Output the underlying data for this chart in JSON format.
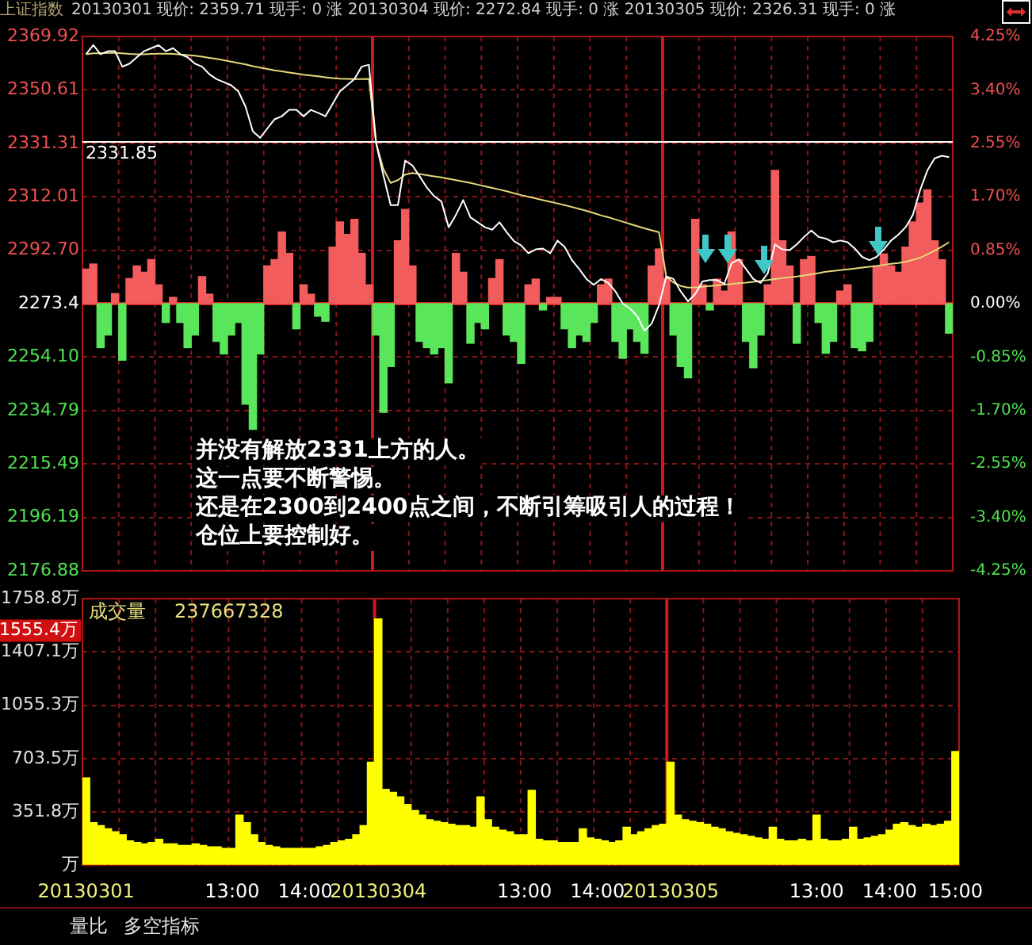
{
  "chart_data": [
    {
      "type": "line",
      "title": "上证指数",
      "subtitle": "20130301 现价: 2359.71 现手: 0 涨 20130304 现价: 2272.84 现手: 0 涨 20130305 现价: 2326.31 现手: 0 涨",
      "categories": [
        null,
        null,
        null,
        null,
        null,
        null,
        null,
        null,
        null,
        null,
        null,
        null,
        null,
        null,
        null,
        null,
        null,
        null,
        null,
        null,
        null,
        null,
        null,
        null,
        null,
        null,
        null,
        null,
        null,
        null,
        null,
        null,
        null,
        null,
        null,
        null,
        null,
        null,
        null,
        null,
        null,
        null,
        null,
        null,
        null,
        null,
        null,
        null,
        null,
        null,
        null,
        null,
        null,
        null,
        null,
        null,
        null,
        null,
        null,
        null,
        null,
        null,
        null,
        null,
        null,
        null,
        null,
        null,
        null,
        null,
        null,
        null,
        null,
        null,
        null,
        null,
        null,
        null,
        null,
        null,
        null,
        null,
        null,
        null,
        null,
        null,
        null,
        null,
        null,
        null,
        null,
        null,
        null,
        null,
        null,
        null,
        null,
        null,
        null,
        null,
        null,
        null,
        null,
        null,
        null,
        null,
        null,
        null,
        null,
        null,
        null,
        null,
        null,
        null,
        null,
        null,
        null,
        null,
        null,
        null
      ],
      "series": [
        {
          "type": "bar",
          "axis": "y2",
          "color": "#f25c5c",
          "values": [
            0.55,
            0.63,
            null,
            null,
            0.16,
            null,
            0.4,
            0.6,
            0.5,
            0.7,
            0.3,
            null,
            0.1,
            null,
            null,
            null,
            0.43,
            0.15,
            null,
            null,
            null,
            null,
            null,
            null,
            null,
            0.6,
            0.7,
            1.14,
            0.8,
            null,
            0.3,
            0.15,
            null,
            null,
            0.9,
            1.3,
            1.1,
            1.34,
            0.8,
            0.3,
            null,
            null,
            null,
            1.0,
            1.5,
            0.6,
            null,
            null,
            null,
            null,
            null,
            0.8,
            0.5,
            null,
            null,
            null,
            0.4,
            0.7,
            null,
            null,
            null,
            0.3,
            0.39,
            null,
            0.1,
            0.1,
            null,
            null,
            null,
            null,
            null,
            0.3,
            0.39,
            null,
            null,
            null,
            null,
            null,
            0.6,
            0.87,
            0.4,
            null,
            null,
            null,
            1.34,
            0.3,
            null,
            0.39,
            0.2,
            1.14,
            0.7,
            null,
            null,
            null,
            0.3,
            2.12,
            1.0,
            0.6,
            null,
            0.7,
            0.75,
            null,
            null,
            null,
            0.2,
            0.3,
            null,
            null,
            null,
            0.6,
            0.79,
            0.6,
            0.5,
            0.9,
            1.3,
            1.6,
            1.81,
            1.0,
            0.7,
            null
          ]
        },
        {
          "type": "bar",
          "axis": "y2",
          "color": "#5ae65a",
          "values": [
            null,
            null,
            -0.7,
            -0.5,
            null,
            -0.9,
            null,
            null,
            null,
            null,
            null,
            -0.3,
            null,
            -0.3,
            -0.7,
            -0.5,
            null,
            null,
            -0.6,
            -0.8,
            -0.5,
            -0.3,
            -1.6,
            -2.0,
            -0.8,
            null,
            null,
            null,
            null,
            -0.4,
            null,
            null,
            -0.2,
            -0.28,
            null,
            null,
            null,
            null,
            null,
            null,
            -0.5,
            -1.73,
            -1.0,
            null,
            null,
            null,
            -0.6,
            -0.7,
            -0.8,
            -0.7,
            -1.26,
            null,
            null,
            -0.63,
            -0.3,
            -0.4,
            null,
            null,
            -0.5,
            -0.6,
            -0.95,
            null,
            null,
            -0.1,
            null,
            null,
            -0.4,
            -0.7,
            -0.5,
            -0.6,
            -0.3,
            null,
            null,
            -0.6,
            -0.87,
            -0.4,
            -0.6,
            -0.79,
            null,
            null,
            null,
            -0.5,
            -1.0,
            -1.18,
            null,
            null,
            -0.1,
            null,
            null,
            null,
            null,
            -0.6,
            -1.02,
            -0.5,
            null,
            null,
            null,
            null,
            -0.63,
            null,
            null,
            -0.3,
            -0.79,
            -0.6,
            null,
            null,
            -0.7,
            -0.75,
            -0.6,
            null,
            null,
            null,
            null,
            null,
            null,
            null,
            null,
            null,
            null,
            -0.47
          ]
        },
        {
          "type": "line",
          "color": "#ffffff",
          "values": [
            2363.5,
            2366.8,
            2363.5,
            2364.6,
            2364.6,
            2359.0,
            2360.1,
            2362.4,
            2364.6,
            2365.7,
            2366.8,
            2364.6,
            2365.7,
            2363.5,
            2362.4,
            2360.1,
            2359.0,
            2356.3,
            2354.5,
            2353.4,
            2352.3,
            2350.1,
            2344.5,
            2335.6,
            2333.3,
            2336.7,
            2340.0,
            2341.1,
            2343.4,
            2343.4,
            2341.1,
            2343.4,
            2342.3,
            2341.1,
            2345.6,
            2350.1,
            2352.3,
            2354.5,
            2359.0,
            2359.71,
            2331.3,
            2319.7,
            2309.0,
            2309.0,
            2325.1,
            2323.3,
            2319.4,
            2315.3,
            2312.2,
            2310.3,
            2301.0,
            2305.5,
            2310.8,
            2304.6,
            2302.8,
            2301.0,
            2300.1,
            2302.8,
            2299.2,
            2296.0,
            2294.4,
            2291.6,
            2293.0,
            2293.3,
            2291.6,
            2296.2,
            2293.9,
            2289.1,
            2285.9,
            2282.3,
            2280.2,
            2282.3,
            2280.9,
            2277.8,
            2273.4,
            2271.6,
            2268.9,
            2263.6,
            2266.2,
            2272.84,
            2283.2,
            2282.3,
            2277.8,
            2274.2,
            2276.9,
            2281.4,
            2281.9,
            2281.9,
            2280.5,
            2288.0,
            2289.4,
            2285.9,
            2282.3,
            2280.9,
            2284.4,
            2294.8,
            2293.0,
            2292.7,
            2294.8,
            2297.5,
            2299.8,
            2297.5,
            2296.9,
            2295.6,
            2296.2,
            2295.6,
            2293.3,
            2290.3,
            2289.1,
            2290.3,
            2293.0,
            2296.2,
            2298.3,
            2301.0,
            2305.5,
            2314.4,
            2321.5,
            2325.9,
            2326.8,
            2326.31
          ]
        },
        {
          "type": "line",
          "color": "#e6d77a",
          "values": [
            2363.5,
            2363.8,
            2363.8,
            2364.0,
            2364.0,
            2363.8,
            2363.6,
            2363.5,
            2363.5,
            2363.6,
            2363.7,
            2363.7,
            2363.6,
            2363.4,
            2363.2,
            2363.0,
            2362.6,
            2362.2,
            2361.8,
            2361.3,
            2360.8,
            2360.3,
            2359.8,
            2359.2,
            2358.7,
            2358.2,
            2357.7,
            2357.3,
            2356.9,
            2356.5,
            2356.1,
            2355.8,
            2355.5,
            2355.2,
            2354.9,
            2354.7,
            2354.6,
            2354.5,
            2354.5,
            2354.6,
            2331.3,
            2322.0,
            2317.0,
            2318.0,
            2320.0,
            2320.6,
            2320.2,
            2319.8,
            2319.4,
            2319.0,
            2318.5,
            2318.0,
            2317.5,
            2317.0,
            2316.4,
            2315.8,
            2315.2,
            2314.6,
            2314.0,
            2313.3,
            2312.6,
            2312.0,
            2311.4,
            2310.8,
            2310.2,
            2309.6,
            2309.0,
            2308.3,
            2307.6,
            2306.9,
            2306.1,
            2305.3,
            2304.6,
            2303.8,
            2303.0,
            2302.2,
            2301.4,
            2300.6,
            2299.9,
            2299.2,
            2283.2,
            2281.0,
            2279.8,
            2279.2,
            2279.3,
            2279.5,
            2279.8,
            2280.0,
            2280.3,
            2280.5,
            2280.8,
            2281.0,
            2281.3,
            2281.6,
            2281.9,
            2282.3,
            2282.6,
            2282.9,
            2283.2,
            2283.6,
            2284.0,
            2284.4,
            2284.9,
            2285.2,
            2285.5,
            2285.8,
            2286.1,
            2286.4,
            2286.7,
            2287.0,
            2287.4,
            2287.8,
            2288.1,
            2288.5,
            2289.2,
            2290.0,
            2291.2,
            2292.5,
            2294.0,
            2295.6
          ]
        }
      ],
      "stacked": true,
      "ylim": [
        2176.88,
        2369.92
      ],
      "yticks": [
        2176.88,
        2196.19,
        2215.49,
        2234.79,
        {
          "value": 2254.1,
          "label": "2254.10"
        },
        2273.4,
        {
          "value": 2292.7,
          "label": "2292.70"
        },
        2312.01,
        2331.31,
        2350.61,
        2369.92
      ],
      "y2lim": [
        -4.25,
        4.25
      ],
      "y2ticks": [
        {
          "value": -4.25,
          "label": "-4.25%"
        },
        {
          "value": -3.4,
          "label": "-3.40%"
        },
        {
          "value": -2.55,
          "label": "-2.55%"
        },
        {
          "value": -1.7,
          "label": "-1.70%"
        },
        {
          "value": -0.85,
          "label": "-0.85%"
        },
        {
          "value": 0,
          "label": "0.00%"
        },
        {
          "value": 0.85,
          "label": "0.85%"
        },
        {
          "value": 1.7,
          "label": "1.70%"
        },
        {
          "value": 2.55,
          "label": "2.55%"
        },
        {
          "value": 3.4,
          "label": "3.40%"
        },
        {
          "value": 4.25,
          "label": "4.25%"
        }
      ],
      "ref_lines": [
        {
          "axis": "y",
          "value": 2331.85,
          "label": "2331.85",
          "color": "#ffffff"
        },
        {
          "axis": "y2",
          "value": 0,
          "color": "#e02020"
        }
      ],
      "annotations": [
        "并没有解放2331上方的人。",
        "这一点要不断警惕。",
        "还是在2300到2400点之间，不断引筹吸引人的过程！",
        "仓位上要控制好。"
      ],
      "grid": true,
      "marker": "none",
      "line_style": "solid",
      "tick_labels": "y"
    },
    {
      "type": "bar",
      "title": "成交量",
      "categories": [
        "20130301",
        null,
        null,
        null,
        null,
        null,
        null,
        null,
        null,
        null,
        null,
        null,
        null,
        null,
        null,
        null,
        null,
        null,
        null,
        null,
        "13:00",
        null,
        null,
        null,
        null,
        null,
        null,
        null,
        null,
        null,
        "14:00",
        null,
        null,
        null,
        null,
        null,
        null,
        null,
        null,
        null,
        "20130304",
        null,
        null,
        null,
        null,
        null,
        null,
        null,
        null,
        null,
        null,
        null,
        null,
        null,
        null,
        null,
        null,
        null,
        null,
        null,
        "13:00",
        null,
        null,
        null,
        null,
        null,
        null,
        null,
        null,
        null,
        "14:00",
        null,
        null,
        null,
        null,
        null,
        null,
        null,
        null,
        null,
        "20130305",
        null,
        null,
        null,
        null,
        null,
        null,
        null,
        null,
        null,
        null,
        null,
        null,
        null,
        null,
        null,
        null,
        null,
        null,
        null,
        "13:00",
        null,
        null,
        null,
        null,
        null,
        null,
        null,
        null,
        null,
        "14:00",
        null,
        null,
        null,
        null,
        null,
        null,
        null,
        null,
        "15:00"
      ],
      "color": "#ffff00",
      "values": [
        576,
        280,
        260,
        240,
        220,
        200,
        160,
        150,
        140,
        150,
        170,
        140,
        140,
        130,
        130,
        140,
        130,
        120,
        120,
        110,
        110,
        330,
        280,
        200,
        150,
        130,
        120,
        110,
        110,
        110,
        110,
        110,
        120,
        130,
        150,
        160,
        170,
        200,
        260,
        680,
        1626,
        500,
        480,
        450,
        400,
        360,
        330,
        300,
        290,
        280,
        270,
        260,
        260,
        250,
        450,
        300,
        250,
        230,
        220,
        200,
        200,
        494,
        170,
        160,
        160,
        150,
        150,
        150,
        240,
        180,
        170,
        160,
        150,
        160,
        250,
        200,
        220,
        240,
        260,
        270,
        680,
        330,
        300,
        290,
        280,
        270,
        250,
        240,
        220,
        210,
        200,
        190,
        180,
        170,
        250,
        170,
        160,
        160,
        170,
        160,
        330,
        170,
        160,
        160,
        170,
        250,
        170,
        180,
        190,
        200,
        230,
        270,
        280,
        260,
        250,
        270,
        260,
        270,
        290,
        750
      ],
      "ylim": [
        0,
        1758.8
      ],
      "yticks": [
        {
          "value": 0,
          "label": "万"
        },
        {
          "value": 351.8,
          "label": "351.8万"
        },
        {
          "value": 703.5,
          "label": "703.5万"
        },
        {
          "value": 1055.3,
          "label": "1055.3万"
        },
        {
          "value": 1407.1,
          "label": "1407.1万"
        },
        {
          "value": 1758.8,
          "label": "1758.8万"
        }
      ],
      "annotations": [
        "237667328",
        "1555.4万",
        "量比",
        "多空指标"
      ],
      "grid": true
    }
  ]
}
